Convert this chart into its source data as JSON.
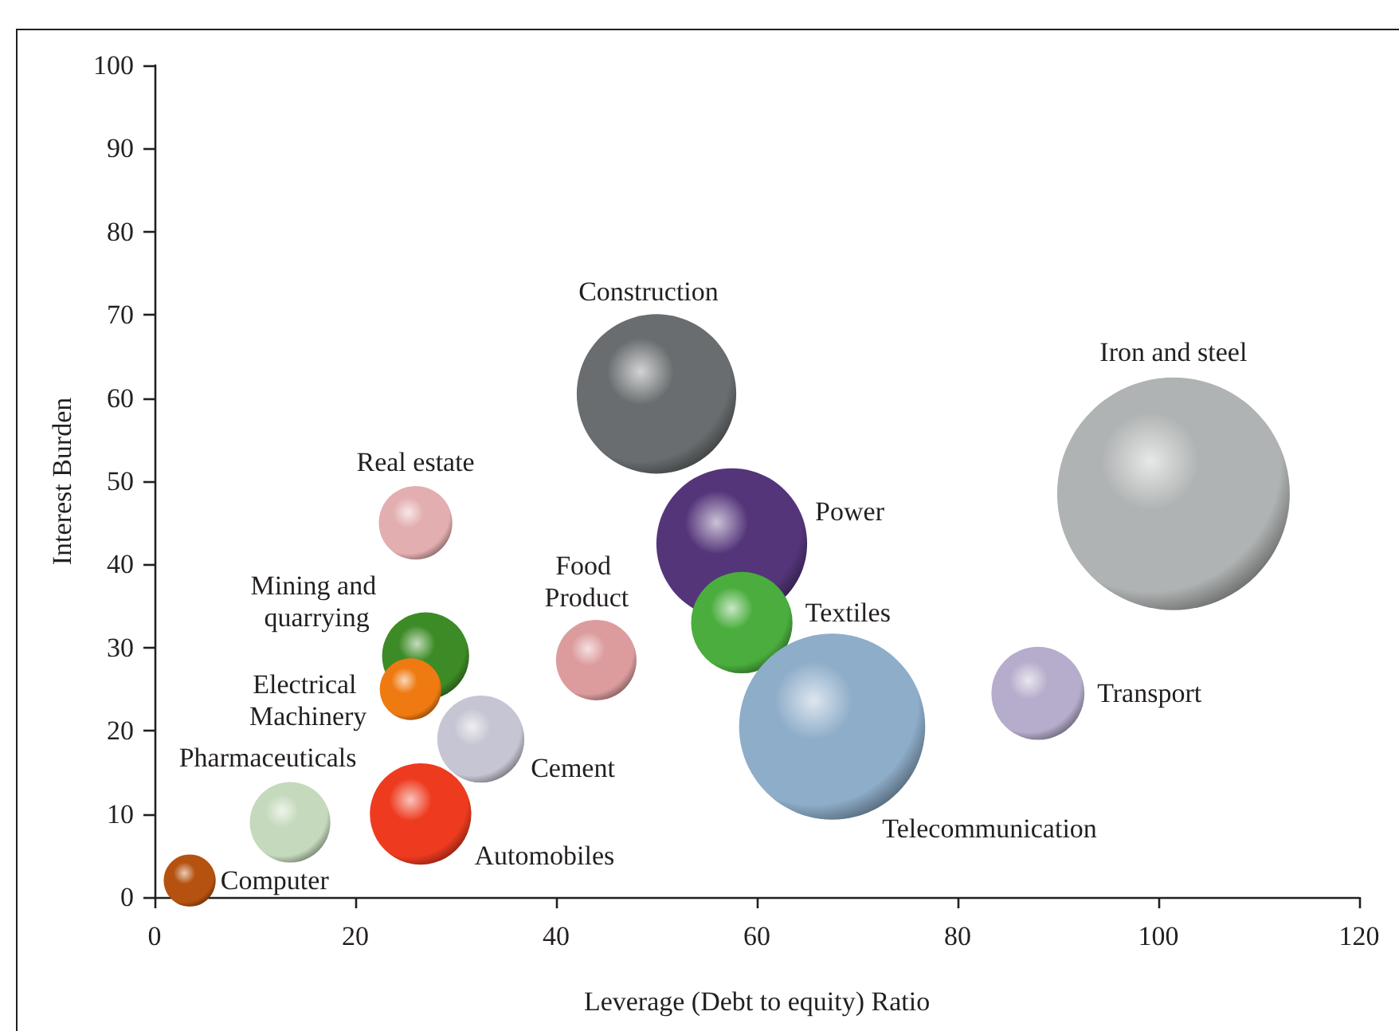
{
  "chart_data": {
    "type": "bubble",
    "xlabel": "Leverage (Debt to equity) Ratio",
    "ylabel": "Interest Burden",
    "xlim": [
      0,
      120
    ],
    "xticks": [
      0,
      20,
      40,
      60,
      80,
      100,
      120
    ],
    "ylim": [
      0,
      100
    ],
    "yticks": [
      0,
      10,
      20,
      30,
      40,
      50,
      60,
      70,
      80,
      90,
      100
    ],
    "series": [
      {
        "name": "Computer",
        "color": "#b5520f",
        "x": [
          3.5
        ],
        "values": [
          2
        ],
        "sizes": [
          0.05
        ]
      },
      {
        "name": "Pharmaceuticals",
        "color": "#c5d9bc",
        "x": [
          13.5
        ],
        "values": [
          9
        ],
        "sizes": [
          0.12
        ]
      },
      {
        "name": "Automobiles",
        "color": "#ee3b1f",
        "x": [
          26.5
        ],
        "values": [
          10
        ],
        "sizes": [
          0.19
        ]
      },
      {
        "name": "Cement",
        "color": "#c6c5d3",
        "x": [
          32.5
        ],
        "values": [
          19
        ],
        "sizes": [
          0.14
        ]
      },
      {
        "name": "Mining and quarrying",
        "color": "#3d8b26",
        "x": [
          27
        ],
        "values": [
          29
        ],
        "sizes": [
          0.14
        ]
      },
      {
        "name": "Electrical Machinery",
        "color": "#ef7a12",
        "x": [
          25.5
        ],
        "values": [
          25
        ],
        "sizes": [
          0.07
        ]
      },
      {
        "name": "Real estate",
        "color": "#e3aeb0",
        "x": [
          26
        ],
        "values": [
          45
        ],
        "sizes": [
          0.1
        ]
      },
      {
        "name": "Food Product",
        "color": "#dc9c9e",
        "x": [
          44
        ],
        "values": [
          28.5
        ],
        "sizes": [
          0.12
        ]
      },
      {
        "name": "Construction",
        "color": "#696d6f",
        "x": [
          50
        ],
        "values": [
          60.5
        ],
        "sizes": [
          0.47
        ]
      },
      {
        "name": "Power",
        "color": "#54357a",
        "x": [
          57.5
        ],
        "values": [
          42.5
        ],
        "sizes": [
          0.42
        ]
      },
      {
        "name": "Textiles",
        "color": "#4aad3d",
        "x": [
          58.5
        ],
        "values": [
          33
        ],
        "sizes": [
          0.19
        ]
      },
      {
        "name": "Telecommunication",
        "color": "#8eadc9",
        "x": [
          67.5
        ],
        "values": [
          20.5
        ],
        "sizes": [
          0.64
        ]
      },
      {
        "name": "Transport",
        "color": "#b6accb",
        "x": [
          88
        ],
        "values": [
          24.5
        ],
        "sizes": [
          0.16
        ]
      },
      {
        "name": "Iron and steel",
        "color": "#b0b3b3",
        "x": [
          101.5
        ],
        "values": [
          48.5
        ],
        "sizes": [
          1
        ]
      }
    ]
  }
}
